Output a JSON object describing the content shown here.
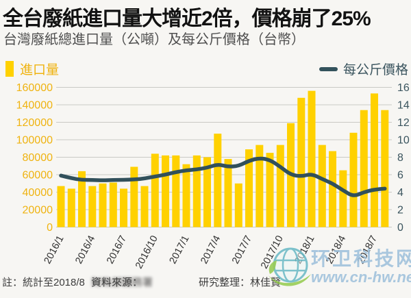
{
  "header": {
    "title": "全台廢紙進口量大增近2倍，價格崩了25%",
    "subtitle": "台灣廢紙總進口量（公噸）及每公斤價格（台幣）"
  },
  "legend": {
    "bars_label": "進口量",
    "line_label": "每公斤價格"
  },
  "chart_data": {
    "type": "bar+line combo",
    "categories": [
      "2016/1",
      "2016/2",
      "2016/3",
      "2016/4",
      "2016/5",
      "2016/6",
      "2016/7",
      "2016/8",
      "2016/9",
      "2016/10",
      "2016/11",
      "2016/12",
      "2017/1",
      "2017/2",
      "2017/3",
      "2017/4",
      "2017/5",
      "2017/6",
      "2017/7",
      "2017/8",
      "2017/9",
      "2017/10",
      "2017/11",
      "2017/12",
      "2018/1",
      "2018/2",
      "2018/3",
      "2018/4",
      "2018/5",
      "2018/6",
      "2018/7",
      "2018/8"
    ],
    "series": [
      {
        "name": "進口量",
        "type": "bar",
        "axis": "left",
        "unit": "公噸",
        "values": [
          47000,
          44000,
          64000,
          47000,
          50000,
          51000,
          44000,
          69000,
          47000,
          84000,
          82000,
          82000,
          72000,
          82000,
          80000,
          107000,
          78000,
          50000,
          89000,
          94000,
          85000,
          94000,
          119000,
          148000,
          156000,
          94000,
          87000,
          65000,
          108000,
          134000,
          153000,
          134000
        ]
      },
      {
        "name": "每公斤價格",
        "type": "line",
        "axis": "right",
        "unit": "台幣/公斤",
        "values": [
          5.9,
          5.6,
          5.4,
          5.4,
          5.35,
          5.4,
          5.4,
          5.45,
          5.55,
          5.8,
          6.0,
          6.3,
          6.5,
          6.6,
          6.8,
          7.2,
          6.9,
          7.0,
          7.6,
          7.9,
          7.7,
          6.9,
          6.0,
          5.8,
          6.1,
          5.5,
          5.0,
          4.2,
          3.5,
          4.0,
          4.3,
          4.4
        ]
      }
    ],
    "left_axis": {
      "min": 0,
      "max": 160000,
      "step": 20000,
      "ticks": [
        "0",
        "20000",
        "40000",
        "60000",
        "80000",
        "100000",
        "120000",
        "140000",
        "160000"
      ]
    },
    "right_axis": {
      "min": 0,
      "max": 16,
      "step": 2,
      "ticks": [
        "0",
        "2",
        "4",
        "6",
        "8",
        "10",
        "12",
        "14",
        "16"
      ]
    },
    "x_ticks": [
      "2016/1",
      "2016/4",
      "2016/7",
      "2016/10",
      "2017/1",
      "2017/4",
      "2017/7",
      "2017/10",
      "2018/1",
      "2018/4",
      "2018/7"
    ],
    "grid": true,
    "legend_position": "top"
  },
  "colors": {
    "bar": "#ffd100",
    "bar_label": "#efb310",
    "line": "#31505b",
    "line_label": "#3a545e",
    "grid": "#c9c9c4",
    "x_label": "#2e2e2e"
  },
  "footer": {
    "note": "註：統計至2018/8",
    "source_label": "資料來源：",
    "source_value": "財政部關務署",
    "credit": "研究整理：林佳賢"
  },
  "watermark": {
    "site_name": "环卫科技网",
    "url": "www.cn-hw.net"
  }
}
